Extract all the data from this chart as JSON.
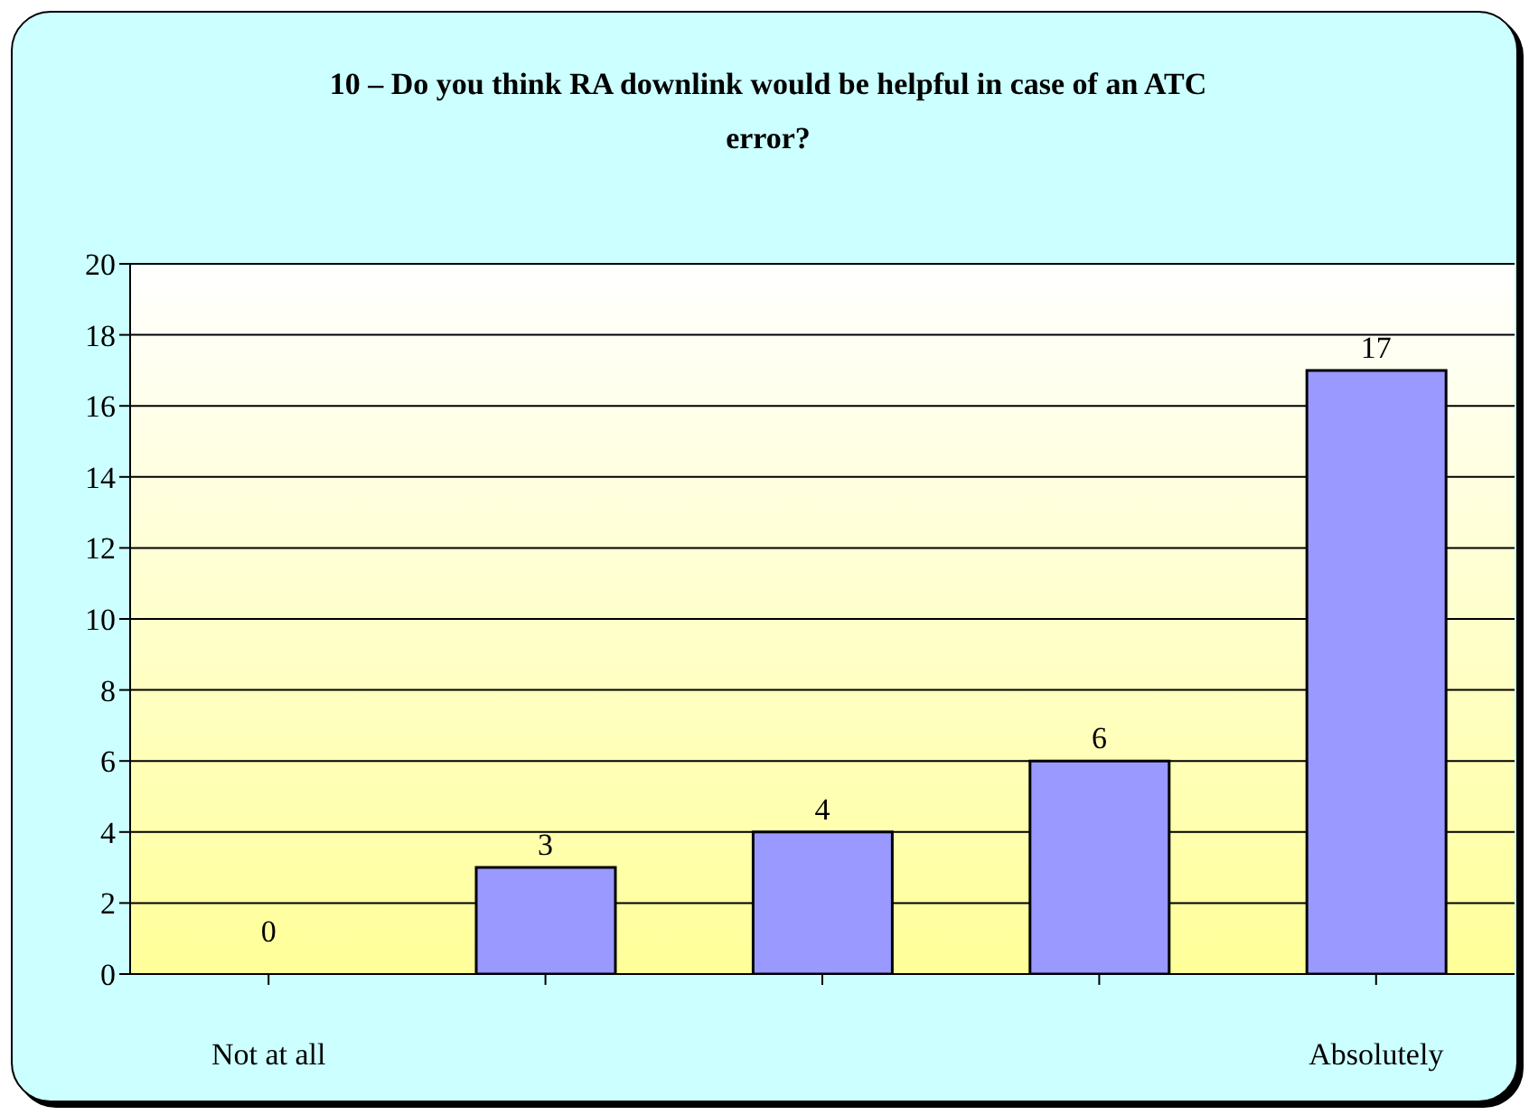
{
  "chart_data": {
    "type": "bar",
    "title": "10 – Do you think RA downlink would be helpful in case of an ATC error?",
    "categories": [
      "Not at all",
      null,
      null,
      null,
      "Absolutely"
    ],
    "values": [
      0,
      3,
      4,
      6,
      17
    ],
    "color": "#9999ff",
    "ylim": [
      0,
      20
    ],
    "yticks": [
      0,
      2,
      4,
      6,
      8,
      10,
      12,
      14,
      16,
      18,
      20
    ],
    "grid": "y",
    "data_labels": true,
    "legend": false
  }
}
